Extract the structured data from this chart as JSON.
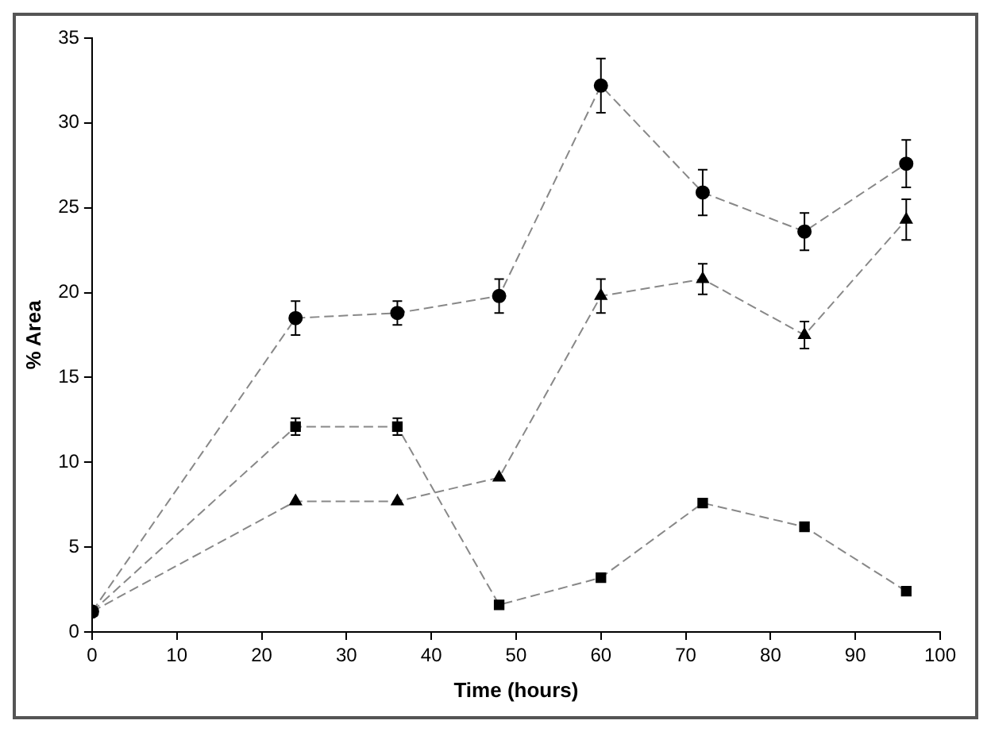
{
  "chart_data": {
    "type": "line",
    "xlabel": "Time (hours)",
    "ylabel": "% Area",
    "x": [
      0,
      24,
      36,
      48,
      60,
      72,
      84,
      96
    ],
    "xlim": [
      0,
      100
    ],
    "xticks": [
      0,
      10,
      20,
      30,
      40,
      50,
      60,
      70,
      80,
      90,
      100
    ],
    "ylim": [
      0,
      35
    ],
    "yticks": [
      0,
      5,
      10,
      15,
      20,
      25,
      30,
      35
    ],
    "grid": false,
    "legend": false,
    "line_style": "dashed",
    "series": [
      {
        "color": "#000000",
        "marker": "circle",
        "values": [
          1.2,
          18.5,
          18.8,
          19.8,
          32.2,
          25.9,
          23.6,
          27.6
        ],
        "errors": [
          null,
          1.0,
          0.7,
          1.0,
          1.6,
          1.35,
          1.1,
          1.4
        ]
      },
      {
        "color": "#000000",
        "marker": "triangle",
        "values": [
          1.2,
          7.7,
          7.7,
          9.1,
          19.8,
          20.8,
          17.5,
          24.3
        ],
        "errors": [
          null,
          null,
          null,
          null,
          1.0,
          0.9,
          0.8,
          1.2
        ]
      },
      {
        "color": "#000000",
        "marker": "square",
        "values": [
          1.2,
          12.1,
          12.1,
          1.6,
          3.2,
          7.6,
          6.2,
          2.4
        ],
        "errors": [
          null,
          0.5,
          0.5,
          null,
          null,
          null,
          null,
          null
        ]
      }
    ]
  }
}
